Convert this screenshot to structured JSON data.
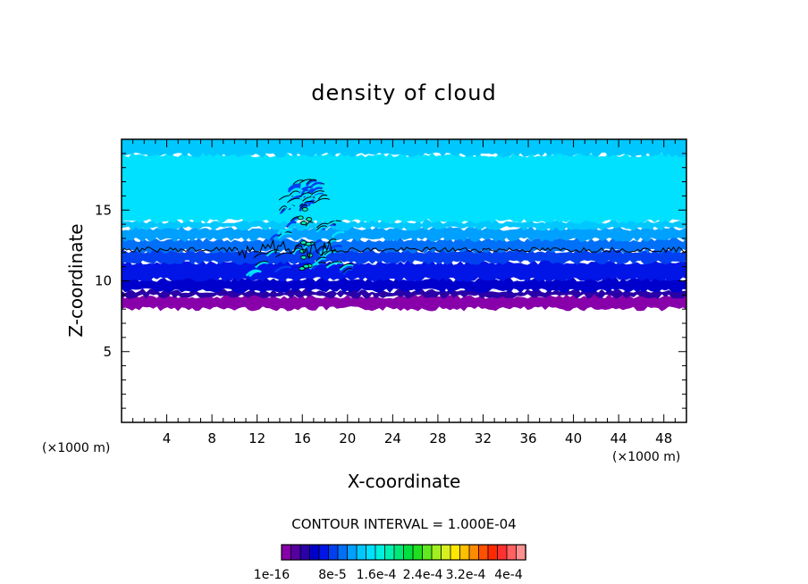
{
  "chart_data": {
    "type": "heatmap",
    "title": "density of cloud",
    "xlabel": "X-coordinate",
    "ylabel": "Z-coordinate",
    "x_unit": "(×1000 m)",
    "z_unit": "(×1000 m)",
    "xlim": [
      0,
      50
    ],
    "ylim": [
      0,
      20
    ],
    "x_ticks": [
      4,
      8,
      12,
      16,
      20,
      24,
      28,
      32,
      36,
      40,
      44,
      48
    ],
    "y_ticks": [
      5,
      10,
      15
    ],
    "contour_interval_text": "CONTOUR INTERVAL = 1.000E-04",
    "colorbar_labels": [
      "1e-16",
      "8e-5",
      "1.6e-4",
      "2.4e-4",
      "3.2e-4",
      "4e-4"
    ],
    "colorbar_colors": [
      "#8800aa",
      "#5500a0",
      "#2a00a8",
      "#0000cc",
      "#0015e6",
      "#0040f0",
      "#0070f8",
      "#00a0ff",
      "#00c8ff",
      "#00e0ff",
      "#00f0e0",
      "#00f0b0",
      "#00e878",
      "#00e040",
      "#20e020",
      "#60e820",
      "#a0f020",
      "#d8f020",
      "#ffe800",
      "#ffc000",
      "#ff8c00",
      "#ff5000",
      "#ff2a00",
      "#ff3030",
      "#ff6060",
      "#ff9090"
    ],
    "layers": [
      {
        "z_min": 8.2,
        "z_max": 8.9,
        "color": "#8800aa"
      },
      {
        "z_min": 8.9,
        "z_max": 9.3,
        "color": "#2a00a8"
      },
      {
        "z_min": 9.3,
        "z_max": 10.1,
        "color": "#0000cc"
      },
      {
        "z_min": 10.1,
        "z_max": 11.3,
        "color": "#0015e6"
      },
      {
        "z_min": 11.3,
        "z_max": 12.1,
        "color": "#0040f0"
      },
      {
        "z_min": 12.1,
        "z_max": 12.9,
        "color": "#0070f8"
      },
      {
        "z_min": 12.9,
        "z_max": 13.7,
        "color": "#00a0ff"
      },
      {
        "z_min": 13.7,
        "z_max": 14.2,
        "color": "#00c8ff"
      },
      {
        "z_min": 14.2,
        "z_max": 18.9,
        "color": "#00e0ff"
      },
      {
        "z_min": 18.9,
        "z_max": 20.0,
        "color": "#00c8ff"
      }
    ],
    "contour_line_z": 12.2,
    "plume": {
      "x_center": 16.2,
      "z_base": 10.5,
      "z_top": 17.4
    }
  }
}
